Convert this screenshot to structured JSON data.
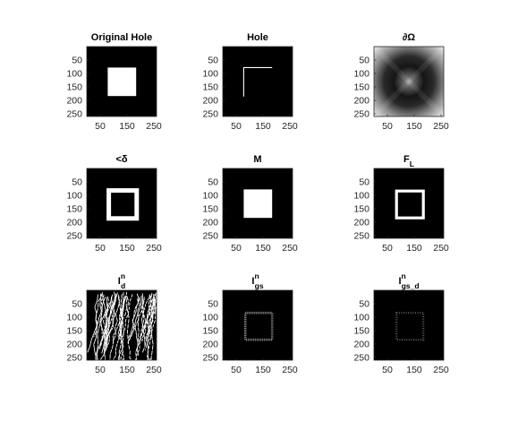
{
  "figure": {
    "background": "#ffffff",
    "image_extent": [
      0,
      260
    ],
    "x_ticks": [
      "50",
      "150",
      "250"
    ],
    "y_ticks": [
      "50",
      "100",
      "150",
      "200",
      "250"
    ],
    "panels": [
      {
        "id": "original-hole",
        "title": "Original Hole",
        "sub": "",
        "sup": "",
        "content": "filled-square"
      },
      {
        "id": "hole",
        "title": "Hole",
        "sub": "",
        "sup": "",
        "content": "corner-lines"
      },
      {
        "id": "boundary",
        "title": "∂Ω",
        "sub": "",
        "sup": "",
        "content": "gradient"
      },
      {
        "id": "less-delta",
        "title": "<δ",
        "sub": "",
        "sup": "",
        "content": "thick-frame"
      },
      {
        "id": "mask-m",
        "title": "M",
        "sub": "",
        "sup": "",
        "content": "filled-square"
      },
      {
        "id": "f-l",
        "title": "F",
        "sub": "L",
        "sup": "",
        "content": "frame"
      },
      {
        "id": "i-d",
        "title": "I",
        "sub": "d",
        "sup": "n",
        "content": "streaks"
      },
      {
        "id": "i-gs",
        "title": "I",
        "sub": "gs",
        "sup": "n",
        "content": "faint-frame"
      },
      {
        "id": "i-gs-d",
        "title": "I",
        "sub": "gs_d",
        "sup": "n",
        "content": "fainter-frame"
      }
    ]
  }
}
